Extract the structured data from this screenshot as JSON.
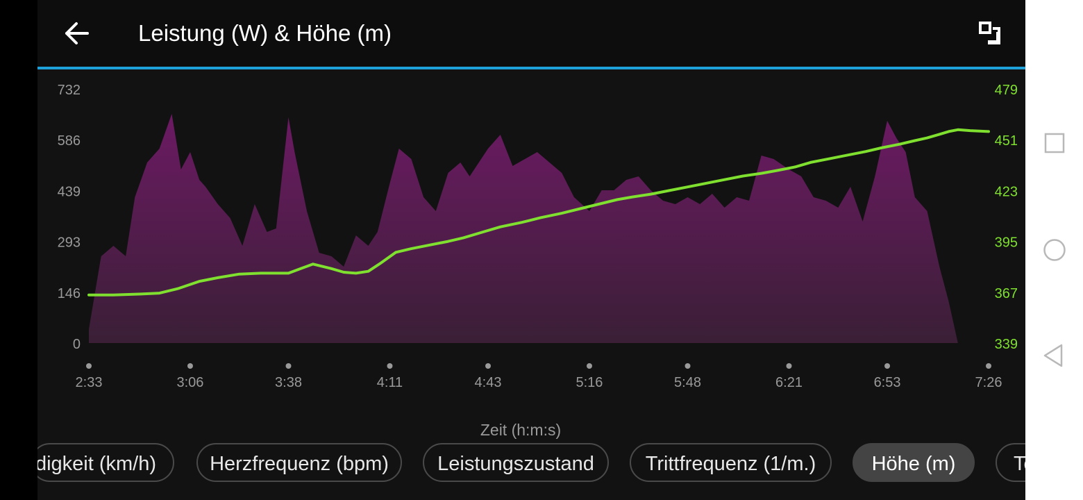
{
  "header": {
    "title": "Leistung (W) & Höhe (m)"
  },
  "icons": {
    "back": "arrow-left-icon",
    "expand": "expand-icon"
  },
  "colors": {
    "accent": "#1ea0d8",
    "power_fill": "#6a1a5f",
    "elevation_line": "#7fe02f",
    "right_axis": "#7fe02f"
  },
  "chart_data": {
    "type": "area",
    "title": "Leistung (W) & Höhe (m)",
    "xlabel": "Zeit (h:m:s)",
    "x_tick_labels": [
      "2:33",
      "3:06",
      "3:38",
      "4:11",
      "4:43",
      "5:16",
      "5:48",
      "6:21",
      "6:53",
      "7:26"
    ],
    "y_left": {
      "label": "Leistung (W)",
      "ticks": [
        "732",
        "586",
        "439",
        "293",
        "146",
        "0"
      ],
      "range": [
        0,
        732
      ]
    },
    "y_right": {
      "label": "Höhe (m)",
      "ticks": [
        "479",
        "451",
        "423",
        "395",
        "367",
        "339"
      ],
      "range": [
        339,
        479
      ]
    },
    "series": [
      {
        "name": "Leistung (W)",
        "type": "area",
        "x_unit": "elapsed time (h:m:s)",
        "x": [
          "2:33",
          "2:37",
          "2:41",
          "2:45",
          "2:48",
          "2:52",
          "2:56",
          "3:00",
          "3:03",
          "3:06",
          "3:09",
          "3:11",
          "3:15",
          "3:19",
          "3:23",
          "3:27",
          "3:31",
          "3:34",
          "3:38",
          "3:40",
          "3:44",
          "3:48",
          "3:52",
          "3:56",
          "4:00",
          "4:04",
          "4:07",
          "4:11",
          "4:14",
          "4:18",
          "4:22",
          "4:26",
          "4:30",
          "4:34",
          "4:37",
          "4:43",
          "4:47",
          "4:51",
          "4:55",
          "4:59",
          "5:03",
          "5:07",
          "5:11",
          "5:16",
          "5:20",
          "5:24",
          "5:28",
          "5:32",
          "5:36",
          "5:40",
          "5:44",
          "5:48",
          "5:52",
          "5:56",
          "6:00",
          "6:04",
          "6:08",
          "6:12",
          "6:16",
          "6:21",
          "6:25",
          "6:29",
          "6:33",
          "6:37",
          "6:41",
          "6:45",
          "6:49",
          "6:53",
          "6:56",
          "6:59",
          "7:02",
          "7:06",
          "7:10",
          "7:13",
          "7:16"
        ],
        "values": [
          40,
          250,
          280,
          250,
          420,
          520,
          560,
          660,
          500,
          550,
          470,
          450,
          400,
          360,
          280,
          400,
          320,
          330,
          650,
          550,
          380,
          260,
          250,
          220,
          310,
          280,
          320,
          460,
          560,
          530,
          420,
          380,
          490,
          520,
          480,
          560,
          600,
          510,
          530,
          550,
          520,
          490,
          420,
          380,
          440,
          440,
          470,
          480,
          440,
          410,
          400,
          420,
          400,
          430,
          390,
          420,
          410,
          540,
          530,
          500,
          480,
          420,
          410,
          390,
          450,
          350,
          480,
          640,
          590,
          550,
          420,
          380,
          220,
          120,
          0
        ]
      },
      {
        "name": "Höhe (m)",
        "type": "line",
        "x_unit": "elapsed time (h:m:s)",
        "x": [
          "2:33",
          "2:41",
          "2:50",
          "2:56",
          "3:02",
          "3:09",
          "3:15",
          "3:22",
          "3:29",
          "3:34",
          "3:38",
          "3:42",
          "3:46",
          "3:52",
          "3:56",
          "4:00",
          "4:04",
          "4:08",
          "4:13",
          "4:18",
          "4:24",
          "4:30",
          "4:35",
          "4:41",
          "4:47",
          "4:54",
          "5:00",
          "5:07",
          "5:13",
          "5:19",
          "5:25",
          "5:30",
          "5:36",
          "5:42",
          "5:48",
          "5:54",
          "6:00",
          "6:06",
          "6:12",
          "6:17",
          "6:23",
          "6:28",
          "6:34",
          "6:40",
          "6:46",
          "6:51",
          "6:57",
          "7:02",
          "7:06",
          "7:10",
          "7:13",
          "7:16",
          "7:20",
          "7:26"
        ],
        "values": [
          365.5,
          365.5,
          366,
          366.5,
          369,
          373,
          375,
          377,
          377.5,
          377.5,
          377.5,
          380,
          382.5,
          380,
          378,
          377.5,
          378.5,
          383,
          389,
          391,
          393,
          395,
          397,
          400,
          403,
          405.5,
          408,
          410.5,
          413,
          415.5,
          418,
          419.5,
          421,
          423,
          425,
          427,
          429,
          431,
          432.5,
          434,
          436,
          438.5,
          440.5,
          442.5,
          444.5,
          446.5,
          448.5,
          450.5,
          452,
          454,
          455.5,
          456.5,
          456,
          455.5
        ]
      }
    ],
    "grid": false,
    "legend": "none"
  },
  "pills": [
    {
      "label": "digkeit (km/h)",
      "active": false
    },
    {
      "label": "Herzfrequenz (bpm)",
      "active": false
    },
    {
      "label": "Leistungszustand",
      "active": false
    },
    {
      "label": "Trittfrequenz (1/m.)",
      "active": false
    },
    {
      "label": "Höhe (m)",
      "active": true
    },
    {
      "label": "Te",
      "active": false
    }
  ],
  "nav": {
    "recents": "square-icon",
    "home": "circle-icon",
    "back": "triangle-back-icon"
  }
}
